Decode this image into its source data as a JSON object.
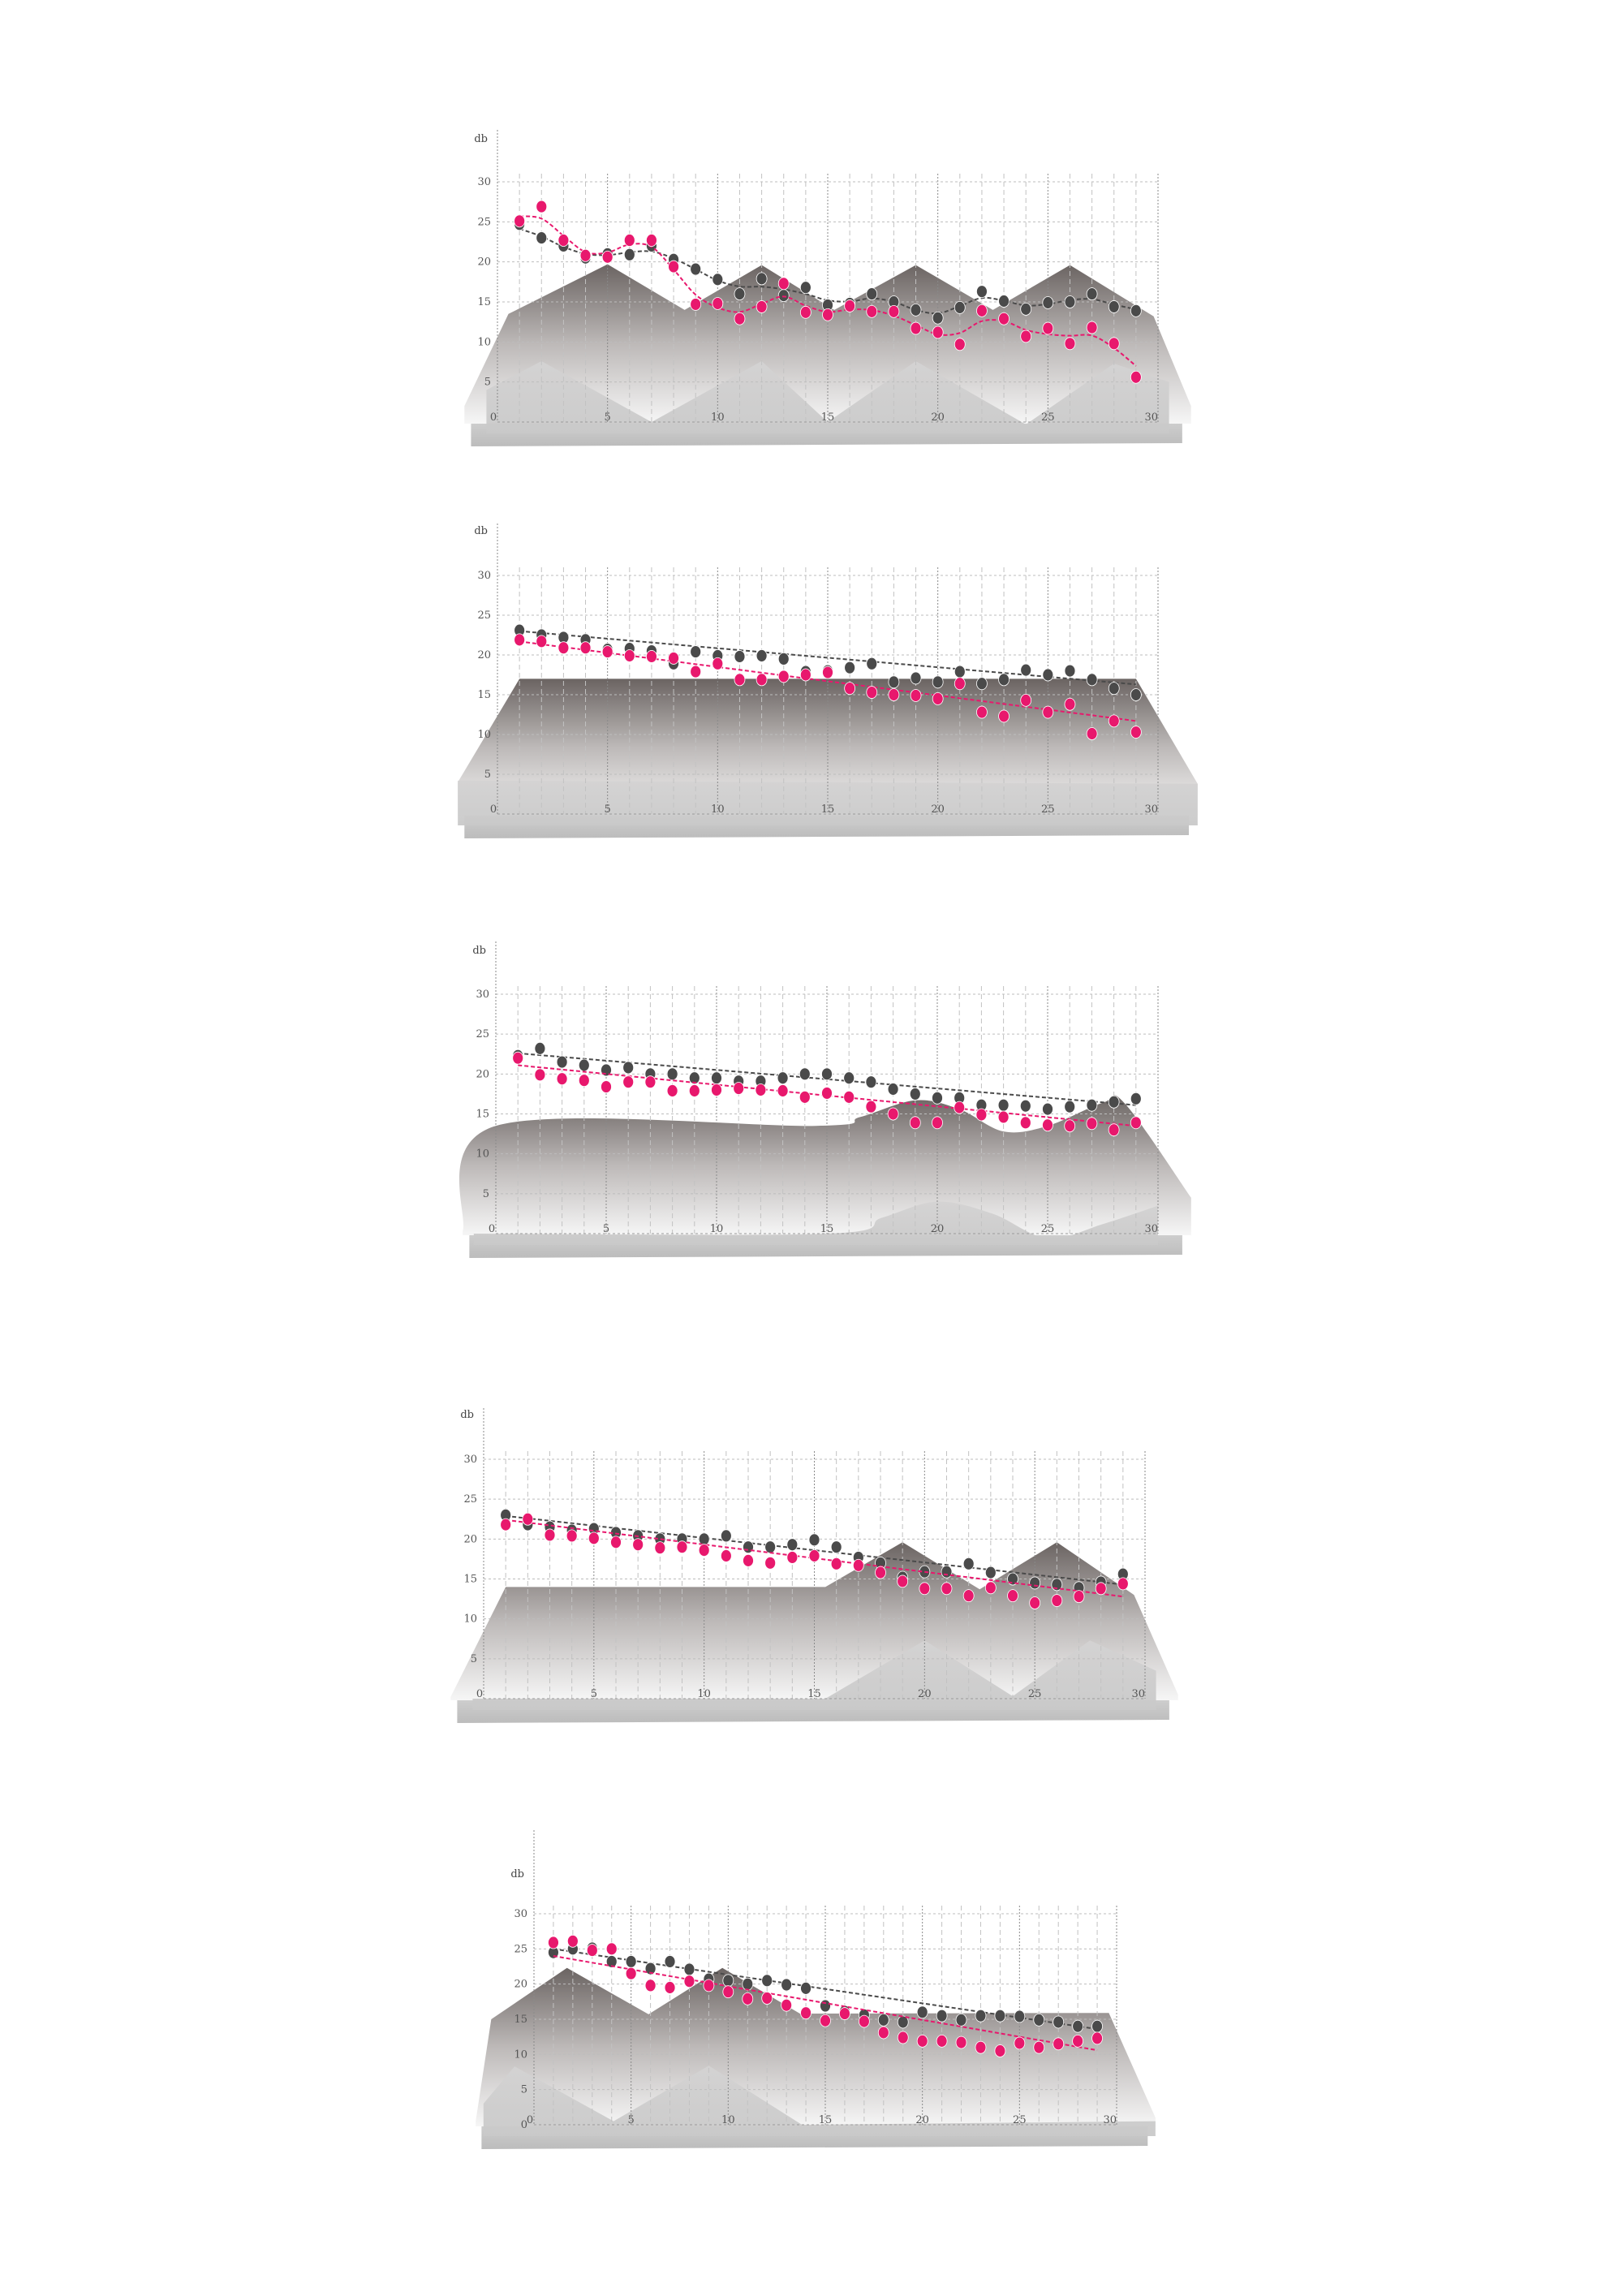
{
  "colors": {
    "series_dark": "#4a4a4a",
    "series_pink": "#e8186d",
    "terrain_dark": "#6b6462",
    "terrain_light": "#f4f4f4",
    "front_terrain": "#cfcfcf",
    "grid": "#b9b9b9"
  },
  "chart_data": [
    {
      "type": "scatter",
      "ylabel": "db",
      "xlim": [
        0,
        30
      ],
      "ylim": [
        0,
        30
      ],
      "xticks": [
        "0",
        "5",
        "10",
        "15",
        "20",
        "25",
        "30"
      ],
      "yticks": [
        "5",
        "10",
        "15",
        "20",
        "25",
        "30"
      ],
      "grid": true,
      "x": [
        1,
        2,
        3,
        4,
        5,
        6,
        7,
        8,
        9,
        10,
        11,
        12,
        13,
        14,
        15,
        16,
        17,
        18,
        19,
        20,
        21,
        22,
        23,
        24,
        25,
        26,
        27,
        28,
        29
      ],
      "series": [
        {
          "color": "#4a4a4a",
          "fit": "smooth",
          "values": [
            24.7,
            23,
            22,
            20.5,
            21,
            20.9,
            22,
            20.3,
            19.1,
            17.8,
            16,
            17.9,
            15.8,
            16.8,
            14.6,
            14.8,
            16,
            15,
            14,
            13,
            14.3,
            16.3,
            15.1,
            14.1,
            14.9,
            15,
            16,
            14.4,
            13.9
          ]
        },
        {
          "color": "#e8186d",
          "fit": "smooth",
          "values": [
            25.1,
            26.9,
            22.7,
            20.8,
            20.6,
            22.7,
            22.7,
            19.4,
            14.7,
            14.8,
            12.9,
            14.4,
            17.3,
            13.7,
            13.4,
            14.5,
            13.8,
            13.8,
            11.7,
            11.2,
            9.7,
            13.9,
            12.9,
            10.7,
            11.7,
            9.8,
            11.8,
            9.8,
            5.6
          ]
        }
      ],
      "background_profile": {
        "smooth": false,
        "back": [
          [
            -1.5,
            2
          ],
          [
            0.5,
            13.5
          ],
          [
            5,
            19.7
          ],
          [
            8.5,
            14
          ],
          [
            12,
            19.6
          ],
          [
            15.3,
            14
          ],
          [
            19,
            19.6
          ],
          [
            22.5,
            14
          ],
          [
            26,
            19.6
          ],
          [
            29.8,
            13.2
          ],
          [
            31.5,
            2
          ]
        ],
        "front": [
          [
            -0.5,
            4
          ],
          [
            2,
            7.6
          ],
          [
            7,
            0
          ],
          [
            12,
            7.6
          ],
          [
            15,
            0
          ],
          [
            19,
            7.6
          ],
          [
            24,
            -0.3
          ],
          [
            28,
            7.3
          ],
          [
            30.5,
            5
          ]
        ]
      }
    },
    {
      "type": "scatter",
      "ylabel": "db",
      "xlim": [
        0,
        30
      ],
      "ylim": [
        0,
        30
      ],
      "xticks": [
        "0",
        "5",
        "10",
        "15",
        "20",
        "25",
        "30"
      ],
      "yticks": [
        "5",
        "10",
        "15",
        "20",
        "25",
        "30"
      ],
      "grid": true,
      "x": [
        1,
        2,
        3,
        4,
        5,
        6,
        7,
        8,
        9,
        10,
        11,
        12,
        13,
        14,
        15,
        16,
        17,
        18,
        19,
        20,
        21,
        22,
        23,
        24,
        25,
        26,
        27,
        28,
        29
      ],
      "series": [
        {
          "color": "#4a4a4a",
          "fit": "linear",
          "trend": [
            [
              1,
              23
            ],
            [
              29,
              16.3
            ]
          ],
          "values": [
            23.1,
            22.5,
            22.2,
            21.9,
            20.7,
            20.8,
            20.5,
            18.9,
            20.4,
            19.9,
            19.8,
            19.9,
            19.5,
            17.9,
            18,
            18.4,
            18.9,
            16.6,
            17.1,
            16.6,
            17.9,
            16.4,
            16.9,
            18.1,
            17.5,
            18,
            16.9,
            15.8,
            15
          ]
        },
        {
          "color": "#e8186d",
          "fit": "linear",
          "trend": [
            [
              1,
              21.7
            ],
            [
              29,
              11.7
            ]
          ],
          "values": [
            21.9,
            21.7,
            20.9,
            20.9,
            20.4,
            19.9,
            19.8,
            19.6,
            17.9,
            18.9,
            16.9,
            16.9,
            17.3,
            17.5,
            17.8,
            15.8,
            15.3,
            15,
            14.9,
            14.5,
            16.4,
            12.8,
            12.3,
            14.3,
            12.8,
            13.8,
            10.1,
            11.7,
            10.3
          ]
        }
      ],
      "background_profile": {
        "smooth": false,
        "back": [
          [
            -1.8,
            4
          ],
          [
            1,
            17
          ],
          [
            29,
            17
          ],
          [
            31.8,
            3.8
          ]
        ],
        "front": [
          [
            -1.8,
            4.2
          ],
          [
            31.8,
            3.8
          ]
        ]
      }
    },
    {
      "type": "scatter",
      "ylabel": "db",
      "xlim": [
        0,
        30
      ],
      "ylim": [
        0,
        30
      ],
      "xticks": [
        "0",
        "5",
        "10",
        "15",
        "20",
        "25",
        "30"
      ],
      "yticks": [
        "5",
        "10",
        "15",
        "20",
        "25",
        "30"
      ],
      "grid": true,
      "x": [
        1,
        2,
        3,
        4,
        5,
        6,
        7,
        8,
        9,
        10,
        11,
        12,
        13,
        14,
        15,
        16,
        17,
        18,
        19,
        20,
        21,
        22,
        23,
        24,
        25,
        26,
        27,
        28,
        29
      ],
      "series": [
        {
          "color": "#4a4a4a",
          "fit": "linear",
          "trend": [
            [
              1,
              22.6
            ],
            [
              29,
              16.1
            ]
          ],
          "values": [
            22.3,
            23.2,
            21.5,
            21.1,
            20.5,
            20.8,
            20,
            20,
            19.5,
            19.5,
            19.1,
            19.1,
            19.5,
            20,
            20,
            19.5,
            19,
            18.1,
            17.5,
            17,
            17,
            16.1,
            16.1,
            16,
            15.6,
            15.9,
            16.1,
            16.5,
            16.9
          ]
        },
        {
          "color": "#e8186d",
          "fit": "linear",
          "trend": [
            [
              1,
              21.1
            ],
            [
              29,
              13.5
            ]
          ],
          "values": [
            22,
            19.9,
            19.4,
            19.2,
            18.4,
            19,
            19,
            17.9,
            17.9,
            18,
            18.2,
            18,
            17.9,
            17.1,
            17.6,
            17.1,
            15.9,
            15,
            13.9,
            13.9,
            15.8,
            14.9,
            14.6,
            13.9,
            13.6,
            13.5,
            13.8,
            13,
            13.9
          ]
        }
      ],
      "background_profile": {
        "smooth": true,
        "back": [
          [
            -1.5,
            0.3
          ],
          [
            0,
            13.5
          ],
          [
            14.5,
            13.5
          ],
          [
            16.5,
            14.6
          ],
          [
            19,
            16.7
          ],
          [
            21,
            15.6
          ],
          [
            23,
            12.8
          ],
          [
            25,
            13.5
          ],
          [
            27.5,
            16.4
          ],
          [
            28.5,
            16.3
          ],
          [
            31.5,
            4.5
          ]
        ],
        "front": [
          [
            -1,
            0
          ],
          [
            15,
            0
          ],
          [
            17.5,
            2
          ],
          [
            20,
            4
          ],
          [
            22.5,
            2.5
          ],
          [
            25,
            -0.6
          ],
          [
            27.5,
            1.2
          ],
          [
            30,
            3.5
          ]
        ]
      }
    },
    {
      "type": "scatter",
      "ylabel": "db",
      "xlim": [
        0,
        30
      ],
      "ylim": [
        0,
        30
      ],
      "xticks": [
        "0",
        "5",
        "10",
        "15",
        "20",
        "25",
        "30"
      ],
      "yticks": [
        "5",
        "10",
        "15",
        "20",
        "25",
        "30"
      ],
      "grid": true,
      "x": [
        1,
        2,
        3,
        4,
        5,
        6,
        7,
        8,
        9,
        10,
        11,
        12,
        13,
        14,
        15,
        16,
        17,
        18,
        19,
        20,
        21,
        22,
        23,
        24,
        25,
        26,
        27,
        28,
        29
      ],
      "series": [
        {
          "color": "#4a4a4a",
          "fit": "linear",
          "trend": [
            [
              1,
              22.9
            ],
            [
              29,
              14.3
            ]
          ],
          "values": [
            23,
            21.8,
            21.5,
            21.1,
            21.3,
            20.8,
            20.4,
            20,
            20,
            20,
            20.4,
            19,
            19,
            19.3,
            19.9,
            19,
            17.7,
            17,
            15.2,
            15.9,
            15.9,
            16.9,
            15.8,
            15,
            14.5,
            14.3,
            13.9,
            14.6,
            15.6
          ]
        },
        {
          "color": "#e8186d",
          "fit": "linear",
          "trend": [
            [
              1,
              22.4
            ],
            [
              29,
              12.8
            ]
          ],
          "values": [
            21.8,
            22.5,
            20.5,
            20.4,
            20.1,
            19.6,
            19.3,
            18.9,
            19,
            18.6,
            17.9,
            17.3,
            17,
            17.7,
            17.9,
            16.9,
            16.7,
            15.8,
            14.7,
            13.8,
            13.8,
            12.9,
            13.9,
            12.9,
            12,
            12.3,
            12.8,
            13.8,
            14.4
          ]
        }
      ],
      "background_profile": {
        "smooth": false,
        "back": [
          [
            -1.5,
            0.2
          ],
          [
            1,
            14
          ],
          [
            15.5,
            14
          ],
          [
            19,
            19.6
          ],
          [
            22.5,
            13.7
          ],
          [
            26,
            19.6
          ],
          [
            29.5,
            13
          ],
          [
            31.5,
            0.5
          ]
        ],
        "front": [
          [
            -0.5,
            0
          ],
          [
            15.5,
            0
          ],
          [
            20,
            7.3
          ],
          [
            24,
            0.3
          ],
          [
            27.5,
            7.3
          ],
          [
            30.5,
            3.5
          ]
        ]
      }
    },
    {
      "type": "scatter",
      "ylabel": "db",
      "xlim": [
        0,
        30
      ],
      "ylim": [
        0,
        30
      ],
      "xticks": [
        "0",
        "5",
        "10",
        "15",
        "20",
        "25",
        "30"
      ],
      "yticks": [
        "0",
        "5",
        "10",
        "15",
        "20",
        "25",
        "30"
      ],
      "grid": true,
      "x": [
        1,
        2,
        3,
        4,
        5,
        6,
        7,
        8,
        9,
        10,
        11,
        12,
        13,
        14,
        15,
        16,
        17,
        18,
        19,
        20,
        21,
        22,
        23,
        24,
        25,
        26,
        27,
        28,
        29
      ],
      "series": [
        {
          "color": "#4a4a4a",
          "fit": "linear",
          "trend": [
            [
              1,
              25
            ],
            [
              29,
              13.6
            ]
          ],
          "values": [
            24.5,
            25,
            25.1,
            23.2,
            23.2,
            22.2,
            23.2,
            22.1,
            20.7,
            20.5,
            20,
            20.5,
            19.9,
            19.4,
            16.9,
            16.1,
            15.6,
            14.9,
            14.6,
            16,
            15.5,
            14.9,
            15.5,
            15.5,
            15.4,
            14.9,
            14.6,
            14,
            14
          ]
        },
        {
          "color": "#e8186d",
          "fit": "linear",
          "trend": [
            [
              1,
              24
            ],
            [
              29,
              10.6
            ]
          ],
          "values": [
            25.9,
            26.1,
            24.8,
            25,
            21.5,
            19.8,
            19.5,
            20.4,
            19.8,
            18.9,
            17.9,
            18,
            17,
            15.9,
            14.8,
            15.8,
            14.7,
            13.1,
            12.4,
            11.9,
            11.9,
            11.7,
            11,
            10.5,
            11.6,
            11,
            11.5,
            11.9,
            12.3
          ]
        }
      ],
      "background_profile": {
        "smooth": false,
        "back": [
          [
            -3,
            0.5
          ],
          [
            -2.2,
            15
          ],
          [
            1.7,
            22.3
          ],
          [
            5.9,
            15.7
          ],
          [
            9.7,
            22.3
          ],
          [
            13.7,
            15.8
          ],
          [
            29.6,
            15.9
          ],
          [
            32,
            1
          ]
        ],
        "front": [
          [
            -2.6,
            3
          ],
          [
            -1,
            8.3
          ],
          [
            4.1,
            0.5
          ],
          [
            9,
            8.4
          ],
          [
            13.8,
            0
          ],
          [
            32,
            0.5
          ]
        ]
      }
    }
  ]
}
